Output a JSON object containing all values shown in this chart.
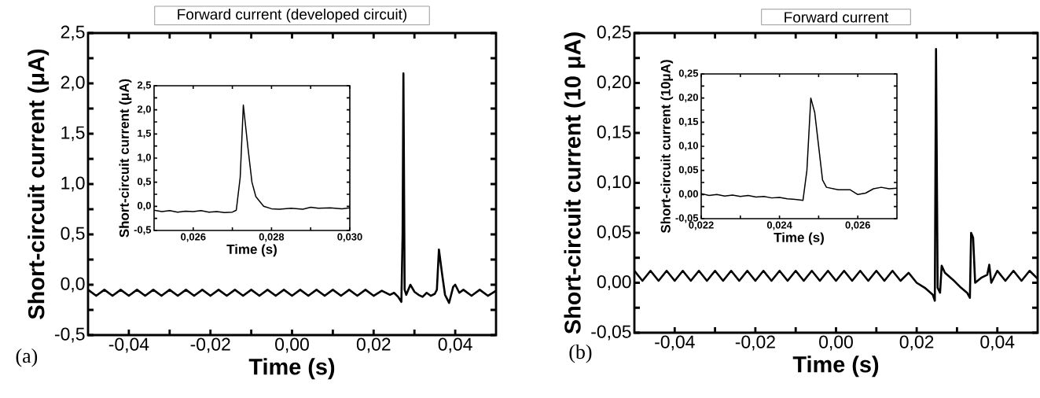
{
  "chart_data": [
    {
      "type": "line",
      "title": "Forward current (developed circuit)",
      "xlabel": "Time (s)",
      "ylabel": "Short-circuit current (μA)",
      "annotations": [
        "(a)"
      ],
      "color": "#000000",
      "line_style": "solid",
      "xlim": [
        -0.05,
        0.05
      ],
      "ylim": [
        -0.5,
        2.5
      ],
      "xticks": [
        {
          "value": -0.04,
          "label": "-0,04"
        },
        {
          "value": -0.02,
          "label": "-0,02"
        },
        {
          "value": 0,
          "label": "0,00"
        },
        {
          "value": 0.02,
          "label": "0,02"
        },
        {
          "value": 0.04,
          "label": "0,04"
        }
      ],
      "yticks": [
        {
          "value": -0.5,
          "label": "-0,5"
        },
        {
          "value": 0,
          "label": "0,0"
        },
        {
          "value": 0.5,
          "label": "0,5"
        },
        {
          "value": 1,
          "label": "1,0"
        },
        {
          "value": 1.5,
          "label": "1,5"
        },
        {
          "value": 2,
          "label": "2,0"
        },
        {
          "value": 2.5,
          "label": "2,5"
        }
      ],
      "x": [
        -0.05,
        -0.048,
        -0.046,
        -0.044,
        -0.042,
        -0.04,
        -0.038,
        -0.036,
        -0.034,
        -0.032,
        -0.03,
        -0.028,
        -0.026,
        -0.024,
        -0.022,
        -0.02,
        -0.018,
        -0.016,
        -0.014,
        -0.012,
        -0.01,
        -0.008,
        -0.006,
        -0.004,
        -0.002,
        0,
        0.002,
        0.004,
        0.006,
        0.008,
        0.01,
        0.012,
        0.014,
        0.016,
        0.018,
        0.02,
        0.022,
        0.024,
        0.025,
        0.026,
        0.0268,
        0.0271,
        0.0273,
        0.0276,
        0.028,
        0.029,
        0.03,
        0.031,
        0.032,
        0.033,
        0.034,
        0.035,
        0.0355,
        0.036,
        0.0368,
        0.0375,
        0.0385,
        0.0395,
        0.04,
        0.041,
        0.042,
        0.044,
        0.046,
        0.048,
        0.05
      ],
      "values": [
        -0.05,
        -0.11,
        -0.05,
        -0.11,
        -0.05,
        -0.11,
        -0.05,
        -0.11,
        -0.05,
        -0.11,
        -0.05,
        -0.11,
        -0.05,
        -0.11,
        -0.05,
        -0.11,
        -0.05,
        -0.11,
        -0.05,
        -0.11,
        -0.05,
        -0.11,
        -0.05,
        -0.11,
        -0.05,
        -0.11,
        -0.05,
        -0.11,
        -0.05,
        -0.11,
        -0.05,
        -0.11,
        -0.05,
        -0.11,
        -0.05,
        -0.11,
        -0.06,
        -0.1,
        -0.08,
        -0.12,
        -0.17,
        0.5,
        2.1,
        -0.05,
        -0.1,
        0,
        -0.07,
        -0.1,
        -0.12,
        -0.08,
        -0.11,
        -0.09,
        -0.05,
        0.35,
        0.1,
        -0.1,
        -0.18,
        -0.02,
        0,
        -0.08,
        -0.05,
        -0.11,
        -0.05,
        -0.11,
        -0.06
      ]
    },
    {
      "type": "line",
      "xlabel": "Time (s)",
      "ylabel": "Short-circuit current (μA)",
      "color": "#000000",
      "line_style": "solid",
      "xlim": [
        0.025,
        0.03
      ],
      "ylim": [
        -0.5,
        2.5
      ],
      "xticks": [
        {
          "value": 0.026,
          "label": "0,026"
        },
        {
          "value": 0.028,
          "label": "0,028"
        },
        {
          "value": 0.03,
          "label": "0,030"
        }
      ],
      "yticks": [
        {
          "value": -0.5,
          "label": "-0,5"
        },
        {
          "value": 0,
          "label": "0,0"
        },
        {
          "value": 0.5,
          "label": "0,5"
        },
        {
          "value": 1,
          "label": "1,0"
        },
        {
          "value": 1.5,
          "label": "1,5"
        },
        {
          "value": 2,
          "label": "2,0"
        },
        {
          "value": 2.5,
          "label": "2,5"
        }
      ],
      "x": [
        0.025,
        0.0252,
        0.0254,
        0.0256,
        0.0258,
        0.026,
        0.0262,
        0.0264,
        0.0266,
        0.0268,
        0.027,
        0.0271,
        0.0272,
        0.02728,
        0.0274,
        0.0275,
        0.0276,
        0.0278,
        0.028,
        0.0282,
        0.0285,
        0.0288,
        0.029,
        0.0292,
        0.0295,
        0.0298,
        0.03
      ],
      "values": [
        -0.08,
        -0.11,
        -0.09,
        -0.12,
        -0.1,
        -0.11,
        -0.09,
        -0.12,
        -0.11,
        -0.13,
        -0.12,
        -0.08,
        0.6,
        2.1,
        1.2,
        0.5,
        0.2,
        0,
        -0.05,
        -0.06,
        -0.04,
        -0.06,
        -0.02,
        -0.04,
        -0.03,
        -0.05,
        -0.03
      ]
    },
    {
      "type": "line",
      "title": "Forward current",
      "xlabel": "Time (s)",
      "ylabel": "Short-circuit current (10 μA)",
      "annotations": [
        "(b)"
      ],
      "color": "#000000",
      "line_style": "solid",
      "xlim": [
        -0.05,
        0.05
      ],
      "ylim": [
        -0.05,
        0.25
      ],
      "xticks": [
        {
          "value": -0.04,
          "label": "-0,04"
        },
        {
          "value": -0.02,
          "label": "-0,02"
        },
        {
          "value": 0,
          "label": "0,00"
        },
        {
          "value": 0.02,
          "label": "0,02"
        },
        {
          "value": 0.04,
          "label": "0,04"
        }
      ],
      "yticks": [
        {
          "value": -0.05,
          "label": "-0,05"
        },
        {
          "value": 0,
          "label": "0,00"
        },
        {
          "value": 0.05,
          "label": "0,05"
        },
        {
          "value": 0.1,
          "label": "0,10"
        },
        {
          "value": 0.15,
          "label": "0,15"
        },
        {
          "value": 0.2,
          "label": "0,20"
        },
        {
          "value": 0.25,
          "label": "0,25"
        }
      ],
      "x": [
        -0.05,
        -0.048,
        -0.046,
        -0.044,
        -0.042,
        -0.04,
        -0.038,
        -0.036,
        -0.034,
        -0.032,
        -0.03,
        -0.028,
        -0.026,
        -0.024,
        -0.022,
        -0.02,
        -0.018,
        -0.016,
        -0.014,
        -0.012,
        -0.01,
        -0.008,
        -0.006,
        -0.004,
        -0.002,
        0,
        0.002,
        0.004,
        0.006,
        0.008,
        0.01,
        0.012,
        0.014,
        0.016,
        0.018,
        0.02,
        0.022,
        0.024,
        0.0245,
        0.0248,
        0.0252,
        0.0258,
        0.0262,
        0.027,
        0.029,
        0.031,
        0.0325,
        0.0332,
        0.0335,
        0.034,
        0.0345,
        0.036,
        0.0375,
        0.038,
        0.0385,
        0.04,
        0.042,
        0.044,
        0.046,
        0.048,
        0.05
      ],
      "values": [
        0.012,
        0.002,
        0.012,
        0.002,
        0.012,
        0.002,
        0.012,
        0.002,
        0.012,
        0.002,
        0.012,
        0.002,
        0.012,
        0.002,
        0.012,
        0.002,
        0.012,
        0.002,
        0.012,
        0.002,
        0.012,
        0.002,
        0.012,
        0.002,
        0.012,
        0.002,
        0.012,
        0.002,
        0.012,
        0.002,
        0.012,
        0.002,
        0.012,
        0.002,
        0.01,
        0,
        -0.005,
        -0.012,
        -0.018,
        0.234,
        -0.005,
        -0.01,
        0.017,
        0.01,
        0.003,
        -0.005,
        -0.01,
        -0.015,
        0.05,
        0.045,
        0,
        0.005,
        0.008,
        0.018,
        0,
        0.012,
        0.002,
        0.012,
        0.002,
        0.012,
        0.004
      ]
    },
    {
      "type": "line",
      "xlabel": "Time (s)",
      "ylabel": "Short-circuit current (10μA)",
      "color": "#000000",
      "line_style": "solid",
      "xlim": [
        0.022,
        0.027
      ],
      "ylim": [
        -0.05,
        0.25
      ],
      "xticks": [
        {
          "value": 0.022,
          "label": "0,022"
        },
        {
          "value": 0.024,
          "label": "0,024"
        },
        {
          "value": 0.026,
          "label": "0,026"
        }
      ],
      "yticks": [
        {
          "value": -0.05,
          "label": "-0,05"
        },
        {
          "value": 0,
          "label": "0,00"
        },
        {
          "value": 0.05,
          "label": "0,05"
        },
        {
          "value": 0.1,
          "label": "0,10"
        },
        {
          "value": 0.15,
          "label": "0,15"
        },
        {
          "value": 0.2,
          "label": "0,20"
        },
        {
          "value": 0.25,
          "label": "0,25"
        }
      ],
      "x": [
        0.022,
        0.0222,
        0.0224,
        0.0226,
        0.0228,
        0.023,
        0.0232,
        0.0234,
        0.0236,
        0.0238,
        0.024,
        0.0242,
        0.0244,
        0.0246,
        0.0247,
        0.0248,
        0.0249,
        0.025,
        0.0251,
        0.0252,
        0.0255,
        0.0258,
        0.026,
        0.0262,
        0.0264,
        0.0266,
        0.0268,
        0.027
      ],
      "values": [
        0.002,
        -0.002,
        0,
        -0.003,
        -0.001,
        -0.004,
        -0.002,
        -0.005,
        -0.004,
        -0.007,
        -0.006,
        -0.009,
        -0.01,
        -0.012,
        0.05,
        0.2,
        0.17,
        0.1,
        0.03,
        0.015,
        0.01,
        0.01,
        0,
        0.003,
        0.012,
        0.015,
        0.012,
        0.013
      ]
    }
  ]
}
